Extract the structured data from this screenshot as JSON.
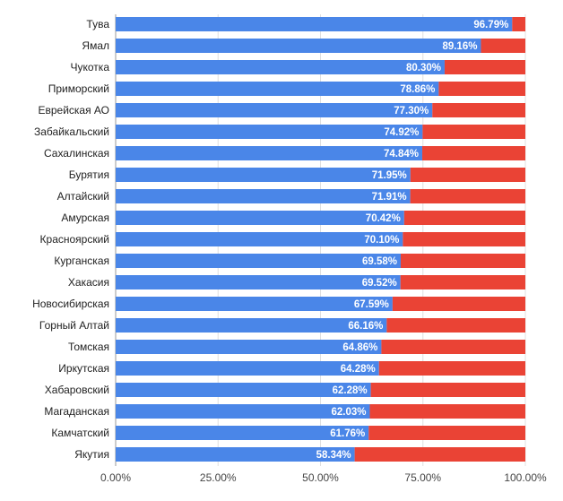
{
  "chart_data": {
    "type": "bar",
    "orientation": "horizontal",
    "stacked": true,
    "categories": [
      "Тува",
      "Ямал",
      "Чукотка",
      "Приморский",
      "Еврейская АО",
      "Забайкальский",
      "Сахалинская",
      "Бурятия",
      "Алтайский",
      "Амурская",
      "Красноярский",
      "Курганская",
      "Хакасия",
      "Новосибирская",
      "Горный Алтай",
      "Томская",
      "Иркутская",
      "Хабаровский",
      "Магаданская",
      "Камчатский",
      "Якутия"
    ],
    "series": [
      {
        "color": "#4a86e8",
        "values": [
          96.79,
          89.16,
          80.3,
          78.86,
          77.3,
          74.92,
          74.84,
          71.95,
          71.91,
          70.42,
          70.1,
          69.58,
          69.52,
          67.59,
          66.16,
          64.86,
          64.28,
          62.28,
          62.03,
          61.76,
          58.34
        ],
        "data_labels": [
          "96.79%",
          "89.16%",
          "80.30%",
          "78.86%",
          "77.30%",
          "74.92%",
          "74.84%",
          "71.95%",
          "71.91%",
          "70.42%",
          "70.10%",
          "69.58%",
          "69.52%",
          "67.59%",
          "66.16%",
          "64.86%",
          "64.28%",
          "62.28%",
          "62.03%",
          "61.76%",
          "58.34%"
        ]
      },
      {
        "color": "#ea4335",
        "values": [
          3.21,
          10.84,
          19.7,
          21.14,
          22.7,
          25.08,
          25.16,
          28.05,
          28.09,
          29.58,
          29.9,
          30.42,
          30.48,
          32.41,
          33.84,
          35.14,
          35.72,
          37.72,
          37.97,
          38.24,
          41.66
        ]
      }
    ],
    "xlim": [
      0,
      100
    ],
    "xticks": [
      "0.00%",
      "25.00%",
      "50.00%",
      "75.00%",
      "100.00%"
    ],
    "grid": true,
    "legend": "none"
  }
}
